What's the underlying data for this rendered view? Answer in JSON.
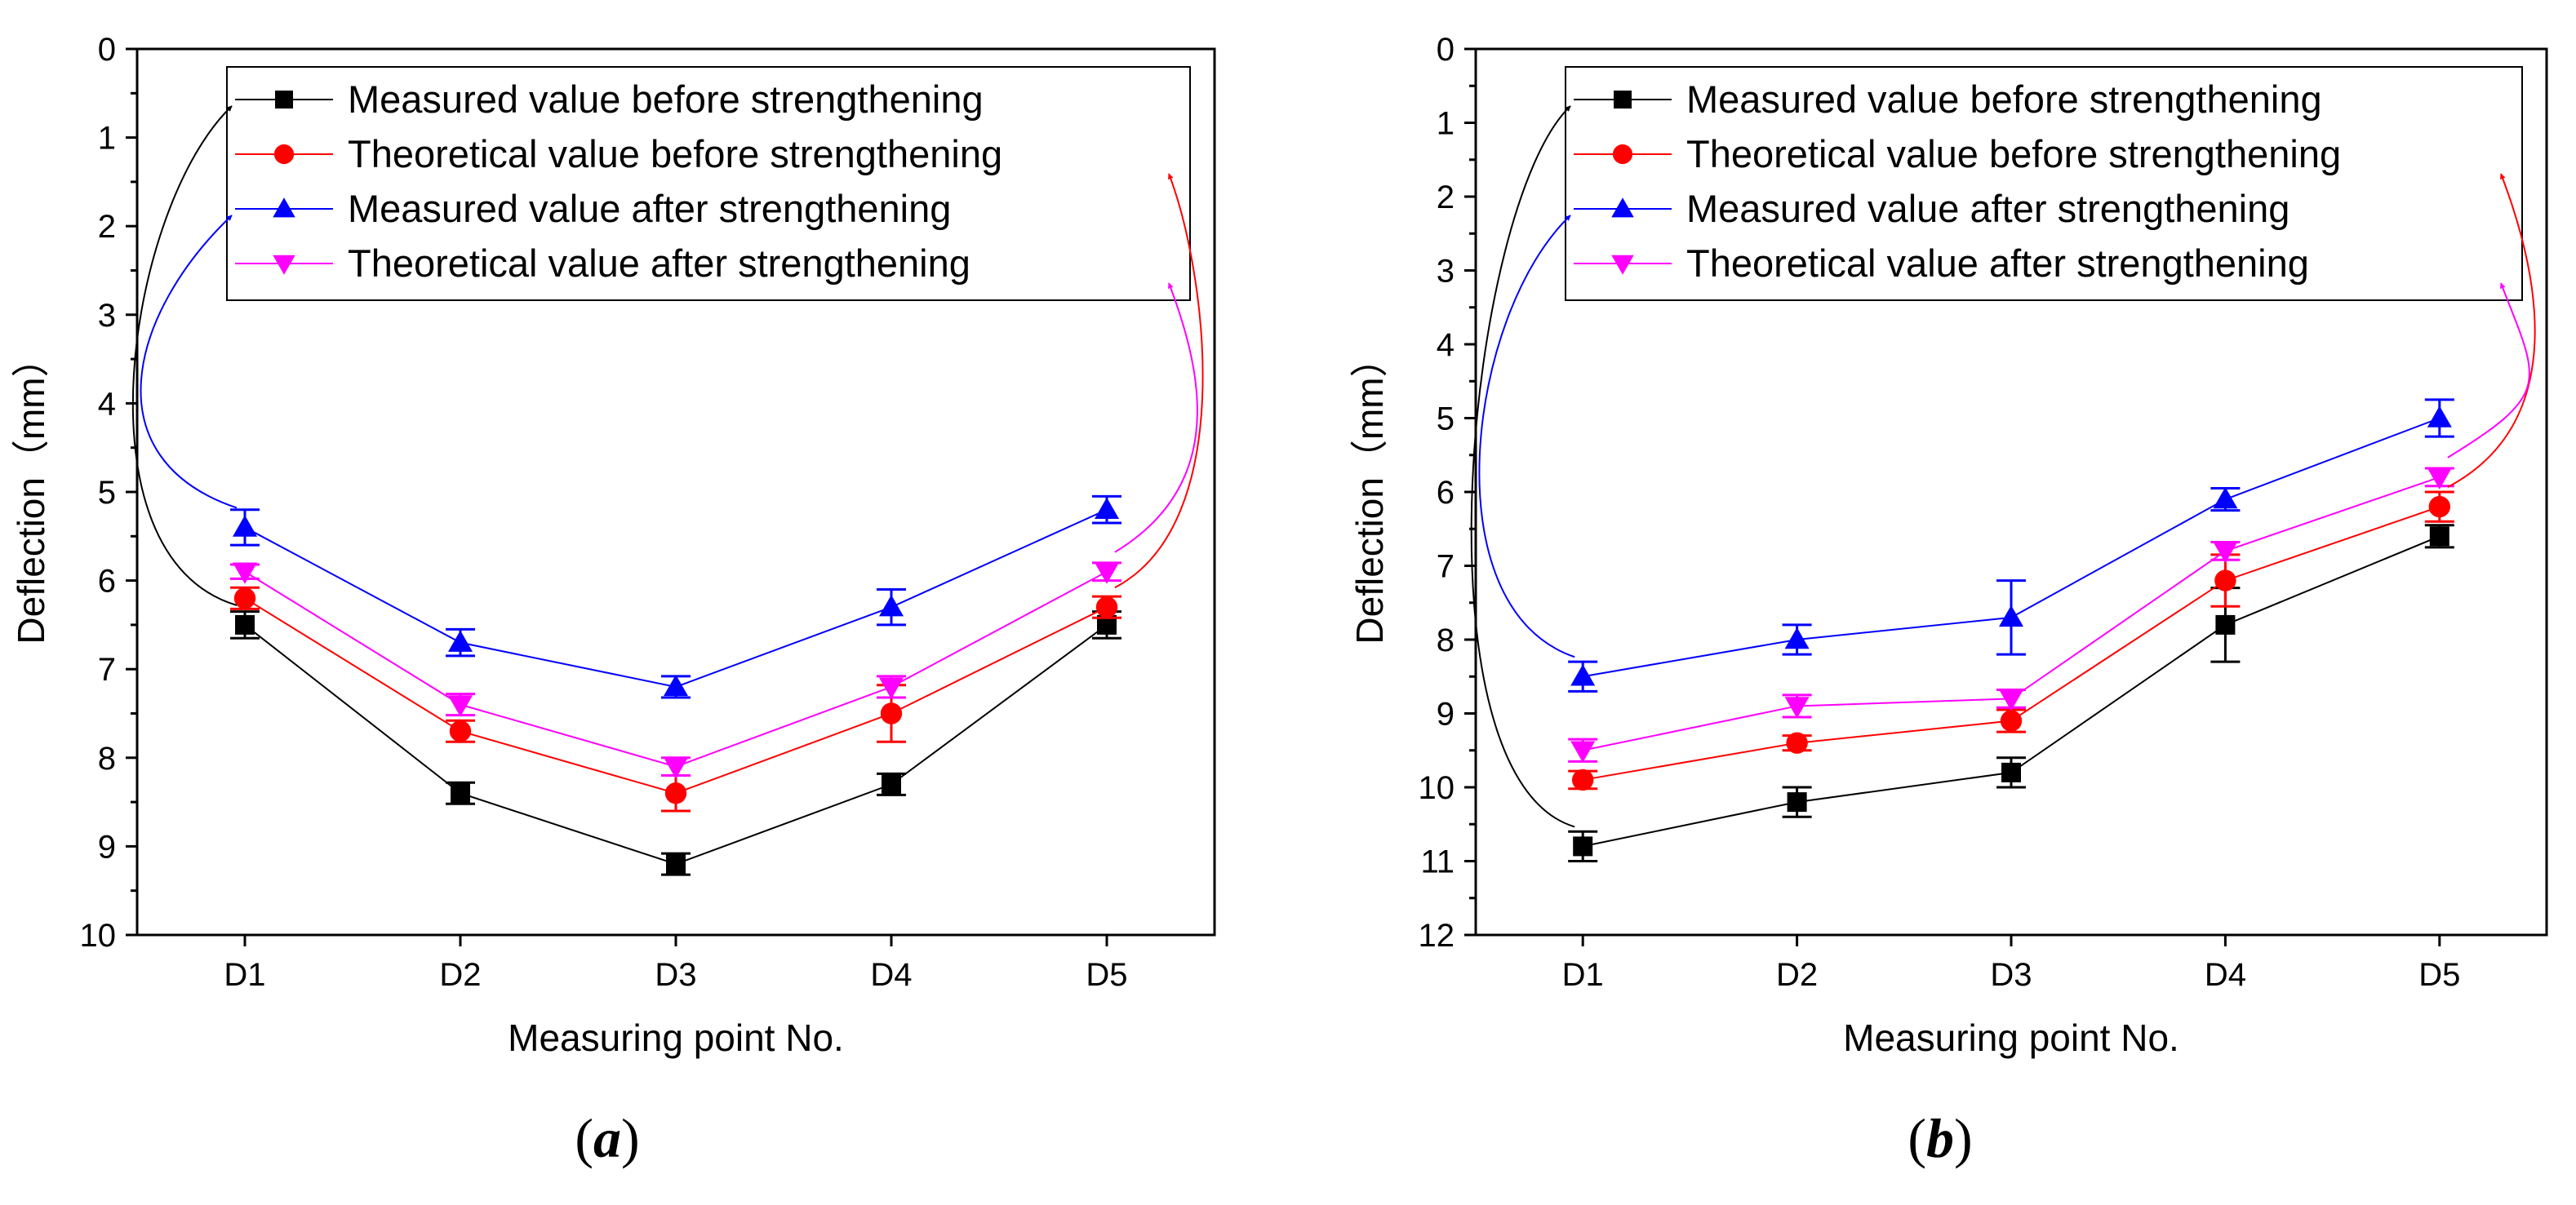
{
  "figure": {
    "panel_labels": [
      {
        "open": "(",
        "letter": "a",
        "close": ")"
      },
      {
        "open": "(",
        "letter": "b",
        "close": ")"
      }
    ]
  },
  "chart_data": [
    {
      "type": "line",
      "panel": "a",
      "title": "",
      "xlabel": "Measuring point No.",
      "ylabel": "Deflection（mm）",
      "categories": [
        "D1",
        "D2",
        "D3",
        "D4",
        "D5"
      ],
      "ylim": [
        0,
        10
      ],
      "y_inverted": true,
      "yticks": [
        0,
        1,
        2,
        3,
        4,
        5,
        6,
        7,
        8,
        9,
        10
      ],
      "grid": false,
      "legend_position": "top-center",
      "series": [
        {
          "name": "Measured value before strengthening",
          "color": "#000000",
          "marker": "square",
          "values": [
            6.5,
            8.4,
            9.2,
            8.3,
            6.5
          ],
          "errors": [
            0.15,
            0.12,
            0.12,
            0.12,
            0.15
          ]
        },
        {
          "name": "Theoretical value before strengthening",
          "color": "#ff0000",
          "marker": "circle",
          "values": [
            6.2,
            7.7,
            8.4,
            7.5,
            6.3
          ],
          "errors": [
            0.12,
            0.12,
            0.2,
            0.32,
            0.12
          ]
        },
        {
          "name": "Measured value after strengthening",
          "color": "#0000ff",
          "marker": "triangle-up",
          "values": [
            5.4,
            6.7,
            7.2,
            6.3,
            5.2
          ],
          "errors": [
            0.2,
            0.15,
            0.12,
            0.2,
            0.15
          ]
        },
        {
          "name": "Theoretical value  after strengthening",
          "color": "#ff00ff",
          "marker": "triangle-down",
          "values": [
            5.9,
            7.4,
            8.1,
            7.2,
            5.9
          ],
          "errors": [
            0.08,
            0.12,
            0.1,
            0.12,
            0.1
          ]
        }
      ],
      "annotations": [
        {
          "type": "arrow",
          "series": 0,
          "from_category": "D1",
          "to_legend_entry": 0,
          "color": "#000000"
        },
        {
          "type": "arrow",
          "series": 2,
          "from_category": "D1",
          "to_legend_entry": 2,
          "color": "#0000ff"
        },
        {
          "type": "arrow",
          "series": 1,
          "from_category": "D5",
          "to_legend_entry": 1,
          "color": "#ff0000"
        },
        {
          "type": "arrow",
          "series": 3,
          "from_category": "D5",
          "to_legend_entry": 3,
          "color": "#ff00ff"
        }
      ]
    },
    {
      "type": "line",
      "panel": "b",
      "title": "",
      "xlabel": "Measuring point No.",
      "ylabel": "Deflection（mm）",
      "categories": [
        "D1",
        "D2",
        "D3",
        "D4",
        "D5"
      ],
      "ylim": [
        0,
        12
      ],
      "y_inverted": true,
      "yticks": [
        0,
        1,
        2,
        3,
        4,
        5,
        6,
        7,
        8,
        9,
        10,
        11,
        12
      ],
      "grid": false,
      "legend_position": "top-center",
      "series": [
        {
          "name": "Measured value before strengthening",
          "color": "#000000",
          "marker": "square",
          "values": [
            10.8,
            10.2,
            9.8,
            7.8,
            6.6
          ],
          "errors": [
            0.2,
            0.2,
            0.2,
            0.5,
            0.15
          ]
        },
        {
          "name": "Theoretical value before strengthening",
          "color": "#ff0000",
          "marker": "circle",
          "values": [
            9.9,
            9.4,
            9.1,
            7.2,
            6.2
          ],
          "errors": [
            0.12,
            0.1,
            0.15,
            0.35,
            0.2
          ]
        },
        {
          "name": "Measured value after strengthening",
          "color": "#0000ff",
          "marker": "triangle-up",
          "values": [
            8.5,
            8.0,
            7.7,
            6.1,
            5.0
          ],
          "errors": [
            0.2,
            0.2,
            0.5,
            0.15,
            0.25
          ]
        },
        {
          "name": "Theoretical value  after strengthening",
          "color": "#ff00ff",
          "marker": "triangle-down",
          "values": [
            9.5,
            8.9,
            8.8,
            6.8,
            5.8
          ],
          "errors": [
            0.15,
            0.15,
            0.12,
            0.12,
            0.12
          ]
        }
      ],
      "annotations": [
        {
          "type": "arrow",
          "series": 0,
          "from_category": "D1",
          "to_legend_entry": 0,
          "color": "#000000"
        },
        {
          "type": "arrow",
          "series": 2,
          "from_category": "D1",
          "to_legend_entry": 2,
          "color": "#0000ff"
        },
        {
          "type": "arrow",
          "series": 1,
          "from_category": "D5",
          "to_legend_entry": 1,
          "color": "#ff0000"
        },
        {
          "type": "arrow",
          "series": 3,
          "from_category": "D5",
          "to_legend_entry": 3,
          "color": "#ff00ff"
        }
      ]
    }
  ]
}
